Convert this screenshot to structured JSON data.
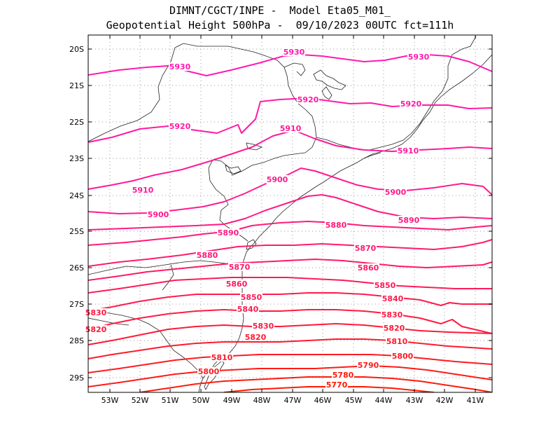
{
  "title": {
    "line1": "DIMNT/CGCT/INPE -  Model Eta05_M01_",
    "line2": "Geopotential Height 500hPa -  09/10/2023 00UTC fct=111h"
  },
  "axes": {
    "lat_labels": [
      "20S",
      "21S",
      "22S",
      "23S",
      "24S",
      "25S",
      "26S",
      "27S",
      "28S",
      "29S"
    ],
    "lon_labels": [
      "53W",
      "52W",
      "51W",
      "50W",
      "49W",
      "48W",
      "47W",
      "46W",
      "45W",
      "44W",
      "43W",
      "42W",
      "41W"
    ]
  },
  "colors": {
    "frame": "#000000",
    "grid": "#9a9a9a",
    "coast": "#222222",
    "high": "#ff1ab0",
    "low": "#ff1a00"
  },
  "contours": [
    {
      "label": "5930",
      "value": 5930
    },
    {
      "label": "5920",
      "value": 5920
    },
    {
      "label": "5910",
      "value": 5910
    },
    {
      "label": "5900",
      "value": 5900
    },
    {
      "label": "5890",
      "value": 5890
    },
    {
      "label": "5880",
      "value": 5880
    },
    {
      "label": "5870",
      "value": 5870
    },
    {
      "label": "5860",
      "value": 5860
    },
    {
      "label": "5850",
      "value": 5850
    },
    {
      "label": "5840",
      "value": 5840
    },
    {
      "label": "5830",
      "value": 5830
    },
    {
      "label": "5820",
      "value": 5820
    },
    {
      "label": "5810",
      "value": 5810
    },
    {
      "label": "5800",
      "value": 5800
    },
    {
      "label": "5790",
      "value": 5790
    },
    {
      "label": "5780",
      "value": 5780
    },
    {
      "label": "5770",
      "value": 5770
    }
  ]
}
